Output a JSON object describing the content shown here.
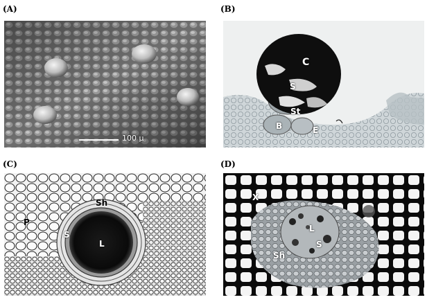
{
  "figure": {
    "panels": [
      {
        "label": "(A)",
        "scale_bar": "100 μ",
        "annotations": []
      },
      {
        "label": "(B)",
        "annotations": [
          "C",
          "S",
          "St",
          "B",
          "E"
        ]
      },
      {
        "label": "(C)",
        "annotations": [
          "Sh",
          "P",
          "S",
          "L"
        ]
      },
      {
        "label": "(D)",
        "annotations": [
          "X",
          "L",
          "S",
          "Sh"
        ]
      }
    ]
  }
}
